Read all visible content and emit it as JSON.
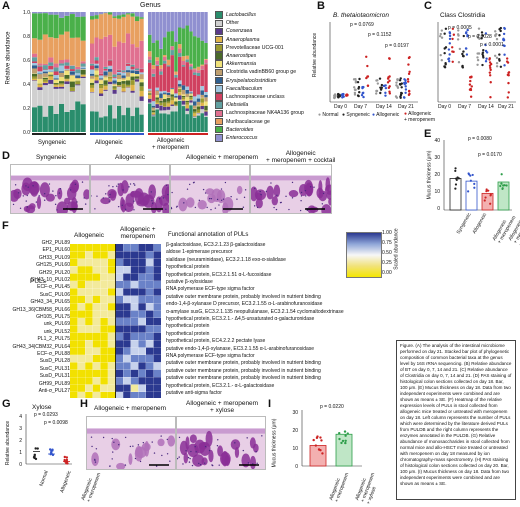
{
  "panel_labels": [
    "A",
    "B",
    "C",
    "D",
    "E",
    "F",
    "G",
    "H",
    "I"
  ],
  "panel_a": {
    "title": "Genus",
    "ylabel": "Relative abundance",
    "yticks": [
      "1.0",
      "0.8",
      "0.6",
      "0.4",
      "0.2",
      "0.0"
    ],
    "group_labels": [
      "Syngeneic",
      "Allogeneic",
      "Allogeneic\n+ meropenem"
    ],
    "group_colors": [
      "#222222",
      "#3355cc",
      "#cc2222"
    ],
    "legend": [
      {
        "label": "Lactobacillus",
        "color": "#2a8d6c"
      },
      {
        "label": "Other",
        "color": "#d0d0d0"
      },
      {
        "label": "Cosenzaea",
        "color": "#5a3a8a"
      },
      {
        "label": "Anaeroplasma",
        "color": "#e0b44a"
      },
      {
        "label": "Prevotellaceae UCG-001",
        "color": "#9a9a30"
      },
      {
        "label": "Anaerostipes",
        "color": "#4a6a2a"
      },
      {
        "label": "Akkermansia",
        "color": "#f0e27a"
      },
      {
        "label": "Clostridia vadinBB60 group ge",
        "color": "#c0a070"
      },
      {
        "label": "Erysipelatoclostridium",
        "color": "#2f5f8f"
      },
      {
        "label": "Faecalibaculum",
        "color": "#a0c8e0"
      },
      {
        "label": "Lachnospiraceae unclass",
        "color": "#d04060"
      },
      {
        "label": "Klebsiella",
        "color": "#60a0a0"
      },
      {
        "label": "Lachnospiraceae NK4A136 group",
        "color": "#e07090"
      },
      {
        "label": "Muribaculaceae ge",
        "color": "#e8a060"
      },
      {
        "label": "Bacteroides",
        "color": "#4ab04a"
      },
      {
        "label": "Enterococcus",
        "color": "#9090d0"
      }
    ]
  },
  "panel_b": {
    "title": "B. thetaiotaomicron",
    "ylabel": "Relative abundance",
    "xticks": [
      "Day 0",
      "Day 7",
      "Day 14",
      "Day 21"
    ],
    "pvalues": [
      "p = 0.0769",
      "p = 0.1152",
      "p = 0.0197"
    ],
    "legend": [
      "Normal",
      "Syngeneic",
      "Allogeneic",
      "Allogeneic\n+ meropenem"
    ],
    "legend_colors": [
      "#999999",
      "#222222",
      "#3355cc",
      "#cc2222"
    ]
  },
  "panel_c": {
    "title": "Class Clostridia",
    "ylabel": "Relative abundance",
    "xticks": [
      "Day 0",
      "Day 7",
      "Day 14",
      "Day 21"
    ],
    "pvalues": [
      "p = 0.0005",
      "p = 0.0028",
      "p < 0.0001"
    ]
  },
  "panel_d": {
    "labels": [
      "Syngeneic",
      "Allogeneic",
      "Allogeneic + meropenem",
      "Allogeneic\n+ meropenem + cocktail"
    ]
  },
  "panel_e": {
    "ylabel": "Mucus thickness (μm)",
    "yticks": [
      "40",
      "30",
      "20",
      "10",
      "0"
    ],
    "pvalues": [
      "p = 0.0080",
      "p = 0.0170"
    ],
    "xlabels": [
      "Syngeneic",
      "Allogeneic",
      "Allogeneic\n+ meropenem",
      "Allogeneic\n+ meropenem\n+ cocktail"
    ],
    "chart_data": {
      "type": "bar",
      "categories": [
        "Syngeneic",
        "Allogeneic",
        "Allogeneic + meropenem",
        "Allogeneic + meropenem + cocktail"
      ],
      "values": [
        18,
        16.5,
        9.5,
        16
      ],
      "ylabel": "Mucus thickness (μm)",
      "ylim": [
        0,
        40
      ]
    }
  },
  "panel_f": {
    "col_allo": "Allogeneic",
    "col_mero": "Allogeneic +\nmeropenem",
    "col_pul": "PULs",
    "col_func": "Functional annotation of PULs",
    "scale_title": "Scaled abundance",
    "scale_ticks": [
      "1.00",
      "0.75",
      "0.50",
      "0.25",
      "0.00"
    ],
    "pul_names": [
      "GH2_PUL89",
      "EP1_PUL60",
      "GH33_PUL09",
      "GH125_PUL60",
      "GH29_PUL20",
      "GH43_10_PUL02",
      "ECF-σ_PUL45",
      "SusC_PUL06",
      "GH43_34_PUL65",
      "GH13_36|CBM58_PUL66",
      "GH105_PUL75",
      "unk_PUL69",
      "unk_PUL52",
      "PL1_2_PUL75",
      "GH43_34|CBM32_PUL64",
      "ECF-σ_PUL88",
      "SusD_PUL28",
      "SusC_PUL31",
      "SusD_PUL31",
      "GH99_PUL89",
      "Anti-σ_PUL27"
    ],
    "functions": [
      "β-galactosidase, EC3.2.1.23 β-galactosidase",
      "aldose 1-epimerase precursor",
      "sialidase (neuraminidase), EC3.2.1.18 exo-α-sialidase",
      "hypothetical protein",
      "hypothetical protein, EC3.2.1.51 α-L-fucosidase",
      "putative β-xylosidase",
      "RNA polymerase ECF-type sigma factor",
      "putative outer membrane protein, probably involved in nutrient binding",
      "endo-1,4-β-xylanase D precursor, EC3.2.1.55 α-L-arabinofuranosidase",
      "α-amylase susG, EC3.2.1.135 neopullulanase, EC3.2.1.54 cyclomaltodextrinase",
      "hypothetical protein, EC3.2.1.- Δ4,5-unsaturated α-galacturonidase",
      "hypothetical protein",
      "hypothetical protein",
      "hypothetical protein, EC4.2.2.2 pectate lyase",
      "putative endo-1,4-β-xylanase, EC3.2.1.55 α-L-arabinofuranosidase",
      "RNA polymerase ECF-type sigma factor",
      "putative outer membrane protein, probably involved in nutrient binding",
      "putative outer membrane protein, probably involved in nutrient binding",
      "putative outer membrane protein, probably involved in nutrient binding",
      "hypothetical protein, EC3.2.1.- α-L-galactosidase",
      "putative anti-sigma factor"
    ]
  },
  "panel_g": {
    "title": "Xylose",
    "ylabel": "Relative abundance",
    "yticks": [
      "4",
      "3",
      "2",
      "1",
      "0"
    ],
    "pvalues": [
      "p = 0.0293",
      "p = 0.0098"
    ],
    "xlabels": [
      "Normal",
      "Allogeneic",
      "Allogeneic\n+ meropenem"
    ]
  },
  "panel_h": {
    "labels": [
      "Allogeneic + meropenem",
      "Allogeneic + meropenem\n+ xylose"
    ]
  },
  "panel_i": {
    "ylabel": "Mucus thickness (μm)",
    "yticks": [
      "30",
      "20",
      "10",
      "0"
    ],
    "pvalue": "p = 0.0220",
    "xlabels": [
      "Allogeneic\n+ meropenem",
      "Allogeneic\n+ meropenem\n+ xylose"
    ],
    "chart_data": {
      "type": "bar",
      "categories": [
        "Allogeneic + meropenem",
        "Allogeneic + meropenem + xylose"
      ],
      "values": [
        11,
        17
      ],
      "ylabel": "Mucus thickness (μm)",
      "ylim": [
        0,
        30
      ]
    }
  },
  "caption": "Figure. (A) The analysis of the intestinal microbiome performed on day 21. Stacked bar plot of phylogenetic composition of common bacterial taxa at the genus level by 16S rRNA sequencing. (B) Relative abundance of BT on day 0, 7, 14 and 21. (C) Relative abundance of Clostridia on day 0, 7, 14 and 21. (D) PAS staining of histological colon sections collected on day 18. Bar, 100 μm. (E) Mucus thickness on day 18. Data from two independent experiments were combined and are shown as means ± SE. (F) Heatmap of the relative expression levels of PULs in stool collected from allogeneic mice treated or untreated with meropenem on day 18. Left column represents the number of PULs which were determined by the literature derived PULs from PULDB and the right column represents the enzymes annotated in the PULDB. (G) Relative abundance of monosaccharides in stool collected from normal mice and allo-HSCT mice treated or untreated with meropenem on day 18 measured by ion chromatography-mass spectrometry. (H) PAS staining of histological colon sections collected on day 20. Bar, 100 μm. (I) Mucus thickness on day 18. Data from two independent experiments were combined and are shown as means ± SE."
}
